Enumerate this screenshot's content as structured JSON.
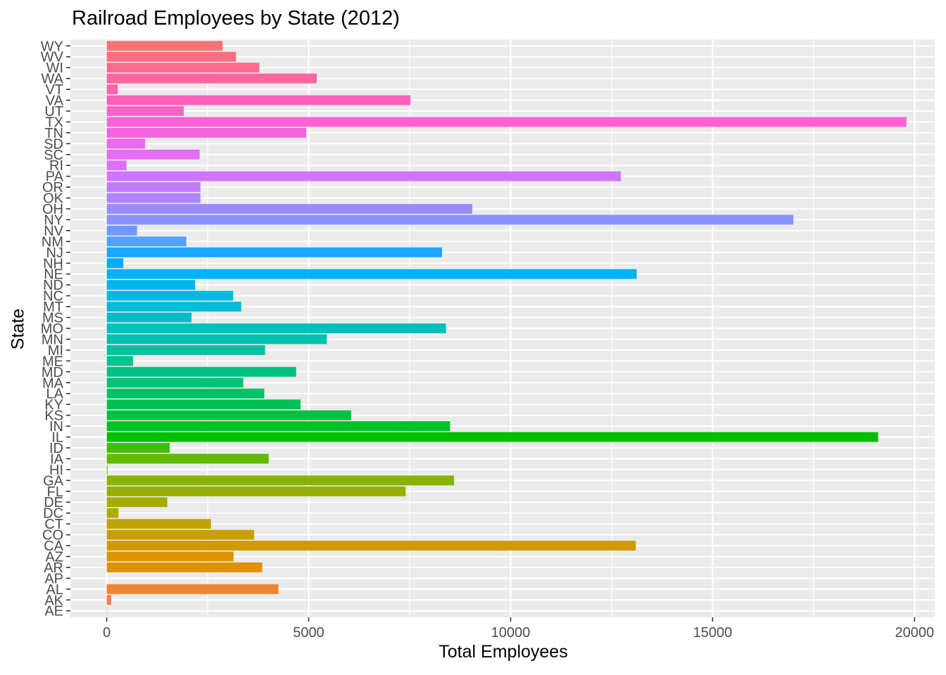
{
  "chart_data": {
    "type": "bar",
    "orientation": "horizontal",
    "title": "Railroad Employees by State (2012)",
    "xlabel": "Total Employees",
    "ylabel": "State",
    "xlim": [
      -900,
      20500
    ],
    "xticks": [
      0,
      5000,
      10000,
      15000,
      20000
    ],
    "xtick_labels": [
      "0",
      "5000",
      "10000",
      "15000",
      "20000"
    ],
    "grid": true,
    "legend": "none",
    "background_color": "#EBEBEB",
    "categories": [
      "AE",
      "AK",
      "AL",
      "AP",
      "AR",
      "AZ",
      "CA",
      "CO",
      "CT",
      "DC",
      "DE",
      "FL",
      "GA",
      "HI",
      "IA",
      "ID",
      "IL",
      "IN",
      "KS",
      "KY",
      "LA",
      "MA",
      "MD",
      "ME",
      "MI",
      "MN",
      "MO",
      "MS",
      "MT",
      "NC",
      "ND",
      "NE",
      "NH",
      "NJ",
      "NM",
      "NV",
      "NY",
      "OH",
      "OK",
      "OR",
      "PA",
      "RI",
      "SC",
      "SD",
      "TN",
      "TX",
      "UT",
      "VA",
      "VT",
      "WA",
      "WI",
      "WV",
      "WY"
    ],
    "values": [
      10,
      110,
      4250,
      0,
      3850,
      3140,
      13100,
      3650,
      2580,
      290,
      1500,
      7400,
      8600,
      20,
      4010,
      1560,
      19100,
      8500,
      6050,
      4800,
      3900,
      3380,
      4690,
      650,
      3920,
      5450,
      8400,
      2100,
      3330,
      3130,
      2190,
      13120,
      410,
      8300,
      1970,
      750,
      17000,
      9050,
      2320,
      2320,
      12730,
      490,
      2300,
      950,
      4940,
      19800,
      1910,
      7520,
      270,
      5200,
      3780,
      3200,
      2870
    ],
    "colors": [
      "#F8766D",
      "#F47D54",
      "#EF8434",
      "#E98A00",
      "#E29000",
      "#DA9500",
      "#D19A00",
      "#C89F00",
      "#BDA400",
      "#B1A800",
      "#A4AC00",
      "#96AF00",
      "#87B300",
      "#75B600",
      "#60BA00",
      "#44BD00",
      "#00BF00",
      "#00C028",
      "#00C141",
      "#00C254",
      "#00C264",
      "#00C274",
      "#00C183",
      "#00C192",
      "#00C0A0",
      "#00BFAE",
      "#00BFBB",
      "#00BDC8",
      "#00BBD4",
      "#00B9E0",
      "#00B6EB",
      "#00B2F5",
      "#00ADFC",
      "#1BA6FF",
      "#53A0FF",
      "#7199FF",
      "#8A92FF",
      "#9E8AFF",
      "#B083FF",
      "#C07CFF",
      "#CE75FF",
      "#DB71FA",
      "#E56CF3",
      "#EE68EA",
      "#F665E0",
      "#FB63D5",
      "#FE61C8",
      "#FF61BB",
      "#FF63AD",
      "#FF659F",
      "#FF6991",
      "#FE6D82",
      "#F87373"
    ]
  }
}
